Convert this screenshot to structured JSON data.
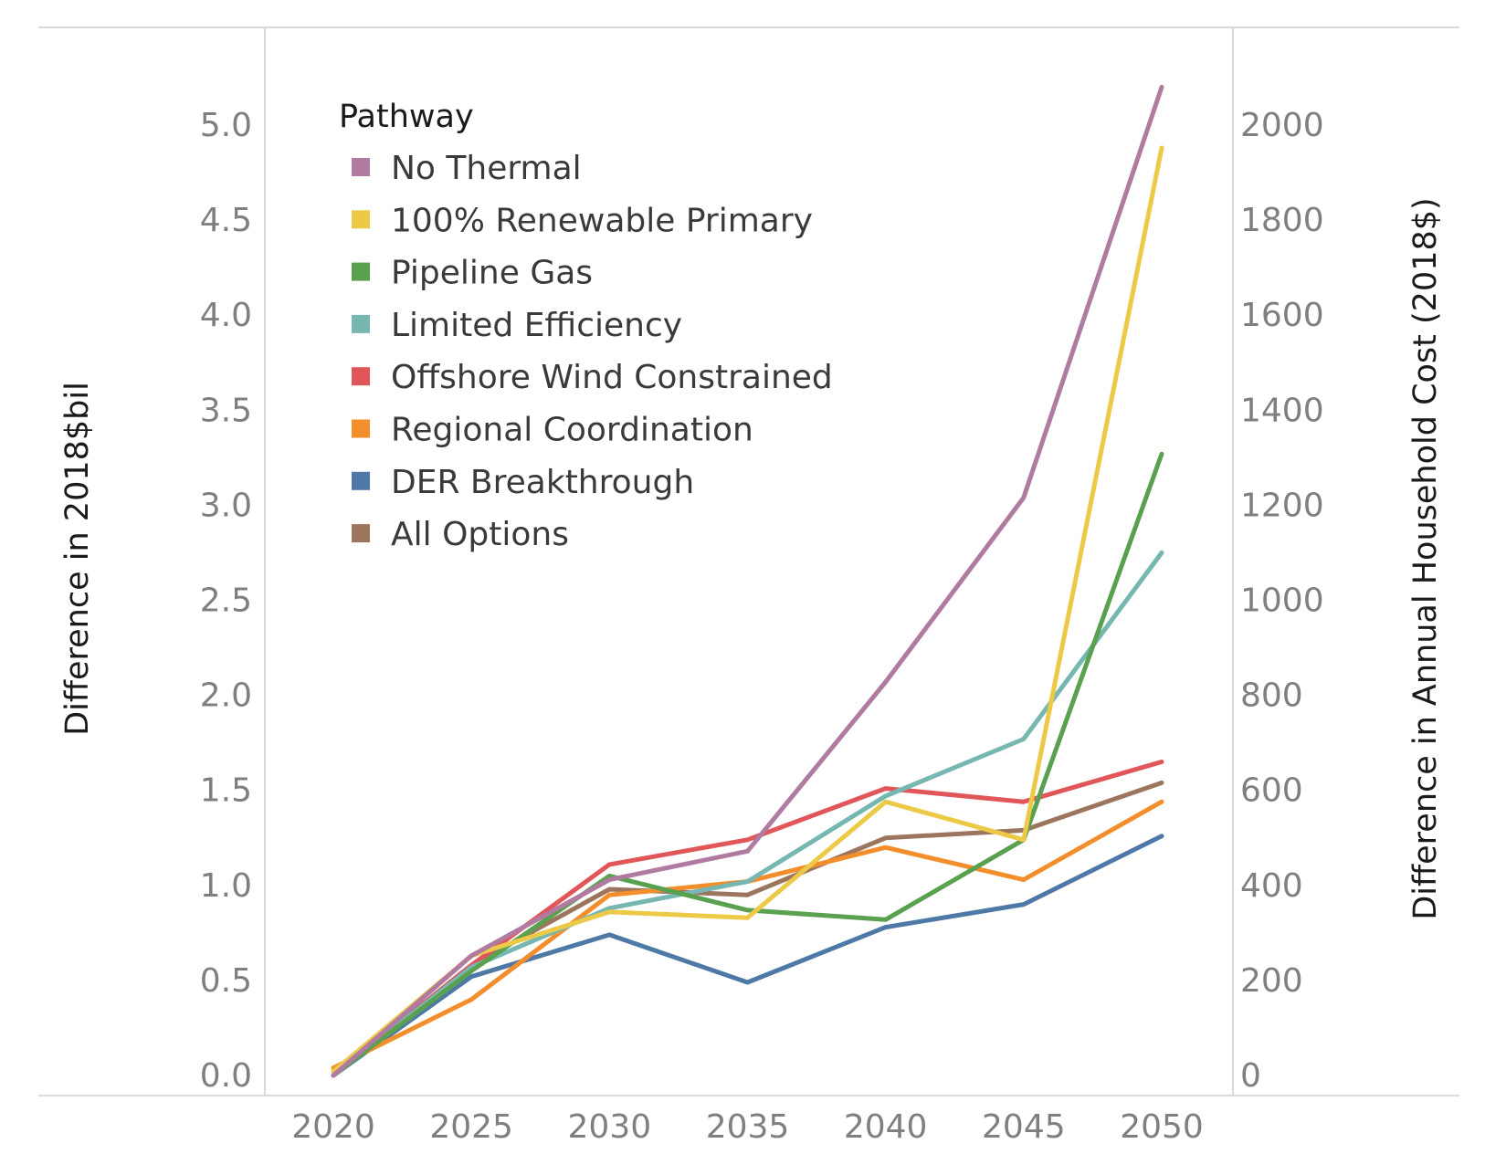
{
  "chart_data": {
    "type": "line",
    "x": [
      2020,
      2025,
      2030,
      2035,
      2040,
      2045,
      2050
    ],
    "x_ticks": [
      "2020",
      "2025",
      "2030",
      "2035",
      "2040",
      "2045",
      "2050"
    ],
    "ylabel": "Difference in 2018$bil",
    "ylabel_right": "Difference in Annual Household Cost (2018$)",
    "ylim": [
      0,
      5.25
    ],
    "y_ticks": [
      "0.0",
      "0.5",
      "1.0",
      "1.5",
      "2.0",
      "2.5",
      "3.0",
      "3.5",
      "4.0",
      "4.5",
      "5.0"
    ],
    "y2lim": [
      0,
      2100
    ],
    "y2_ticks": [
      "0",
      "200",
      "400",
      "600",
      "800",
      "1000",
      "1200",
      "1400",
      "1600",
      "1800",
      "2000"
    ],
    "legend_title": "Pathway",
    "legend_position": "top-left",
    "grid": false,
    "series": [
      {
        "name": "No Thermal",
        "color": "#b07aa1",
        "values": [
          0.0,
          0.63,
          1.03,
          1.18,
          2.07,
          3.04,
          5.2
        ]
      },
      {
        "name": "100% Renewable Primary",
        "color": "#edc948",
        "values": [
          0.02,
          0.63,
          0.86,
          0.83,
          1.44,
          1.24,
          4.88
        ]
      },
      {
        "name": "Pipeline Gas",
        "color": "#59a14f",
        "values": [
          0.0,
          0.55,
          1.05,
          0.87,
          0.82,
          1.24,
          3.27
        ]
      },
      {
        "name": "Limited Efficiency",
        "color": "#76b7b2",
        "values": [
          0.0,
          0.57,
          0.88,
          1.02,
          1.47,
          1.77,
          2.75
        ]
      },
      {
        "name": "Offshore Wind Constrained",
        "color": "#e15759",
        "values": [
          0.0,
          0.58,
          1.11,
          1.24,
          1.51,
          1.44,
          1.65
        ]
      },
      {
        "name": "Regional Coordination",
        "color": "#f28e2b",
        "values": [
          0.04,
          0.4,
          0.95,
          1.02,
          1.2,
          1.03,
          1.44
        ]
      },
      {
        "name": "DER Breakthrough",
        "color": "#4e79a7",
        "values": [
          0.0,
          0.52,
          0.74,
          0.49,
          0.78,
          0.9,
          1.26
        ]
      },
      {
        "name": "All Options",
        "color": "#9c755f",
        "values": [
          0.0,
          0.58,
          0.98,
          0.95,
          1.25,
          1.29,
          1.54
        ]
      }
    ]
  }
}
